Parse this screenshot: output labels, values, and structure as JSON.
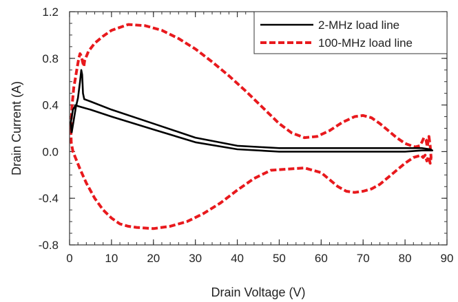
{
  "chart_data": {
    "type": "line",
    "title": "",
    "xlabel": "Drain Voltage (V)",
    "ylabel": "Drain Current (A)",
    "xlim": [
      0,
      90
    ],
    "ylim": [
      -0.8,
      1.2
    ],
    "xticks": [
      "0",
      "10",
      "20",
      "30",
      "40",
      "50",
      "60",
      "70",
      "80",
      "90"
    ],
    "yticks": [
      "-0.8",
      "-0.4",
      "0.0",
      "0.4",
      "0.8",
      "1.2"
    ],
    "grid": false,
    "legend_position": "top-right",
    "series": [
      {
        "name": "2-MHz load line",
        "color": "#000000",
        "style": "solid",
        "x": [
          0.5,
          1.5,
          2.0,
          2.5,
          2.8,
          3.0,
          3.2,
          3.5,
          5,
          10,
          20,
          30,
          40,
          50,
          60,
          70,
          80,
          84,
          86,
          86.5,
          86,
          84,
          80,
          70,
          60,
          50,
          40,
          30,
          20,
          10,
          5,
          3.0,
          2.0,
          1.5,
          0.8,
          0.3,
          0.5
        ],
        "y": [
          0.16,
          0.38,
          0.46,
          0.6,
          0.7,
          0.66,
          0.5,
          0.45,
          0.43,
          0.36,
          0.24,
          0.12,
          0.05,
          0.03,
          0.03,
          0.03,
          0.03,
          0.03,
          0.02,
          0.01,
          0.01,
          0.01,
          0.0,
          0.0,
          0.0,
          0.0,
          0.02,
          0.08,
          0.19,
          0.3,
          0.36,
          0.38,
          0.39,
          0.4,
          0.36,
          0.25,
          0.16
        ]
      },
      {
        "name": "100-MHz load line",
        "color": "#e8191d",
        "style": "dashed",
        "x": [
          0.3,
          0.6,
          1.0,
          1.4,
          1.8,
          2.2,
          2.5,
          2.8,
          3.1,
          3.4,
          3.6,
          4.5,
          6,
          8,
          10,
          14,
          18,
          22,
          26,
          30,
          34,
          38,
          42,
          46,
          50,
          53,
          56,
          59,
          62,
          65,
          68,
          70,
          72,
          74,
          76,
          78,
          80,
          81.5,
          82.5,
          83.5,
          84.0,
          84.5,
          85.0,
          85.3,
          85.7,
          86.0,
          86.2,
          86.0,
          85.6,
          85.2,
          84.8,
          84.3,
          83.8,
          83.0,
          82.0,
          80,
          78,
          76,
          74,
          72,
          70,
          68,
          66,
          64,
          62,
          60,
          56,
          52,
          48,
          44,
          40,
          36,
          32,
          28,
          24,
          20,
          16,
          14,
          12,
          10,
          8,
          6,
          4,
          2.5,
          1.5,
          0.8,
          0.4,
          0.3
        ],
        "y": [
          0.2,
          0.4,
          0.55,
          0.63,
          0.72,
          0.8,
          0.84,
          0.82,
          0.77,
          0.73,
          0.78,
          0.86,
          0.93,
          0.99,
          1.04,
          1.09,
          1.08,
          1.04,
          0.97,
          0.88,
          0.77,
          0.65,
          0.52,
          0.38,
          0.24,
          0.16,
          0.12,
          0.13,
          0.18,
          0.25,
          0.3,
          0.31,
          0.29,
          0.24,
          0.18,
          0.12,
          0.07,
          0.05,
          0.04,
          0.05,
          0.08,
          0.12,
          0.1,
          0.04,
          0.13,
          0.05,
          -0.05,
          -0.1,
          -0.04,
          -0.08,
          -0.03,
          -0.05,
          -0.03,
          -0.04,
          -0.05,
          -0.1,
          -0.16,
          -0.22,
          -0.28,
          -0.32,
          -0.34,
          -0.35,
          -0.34,
          -0.3,
          -0.24,
          -0.18,
          -0.14,
          -0.15,
          -0.16,
          -0.23,
          -0.33,
          -0.44,
          -0.53,
          -0.6,
          -0.64,
          -0.66,
          -0.65,
          -0.64,
          -0.62,
          -0.57,
          -0.5,
          -0.4,
          -0.27,
          -0.15,
          -0.06,
          0.0,
          0.08,
          0.2
        ]
      }
    ]
  }
}
